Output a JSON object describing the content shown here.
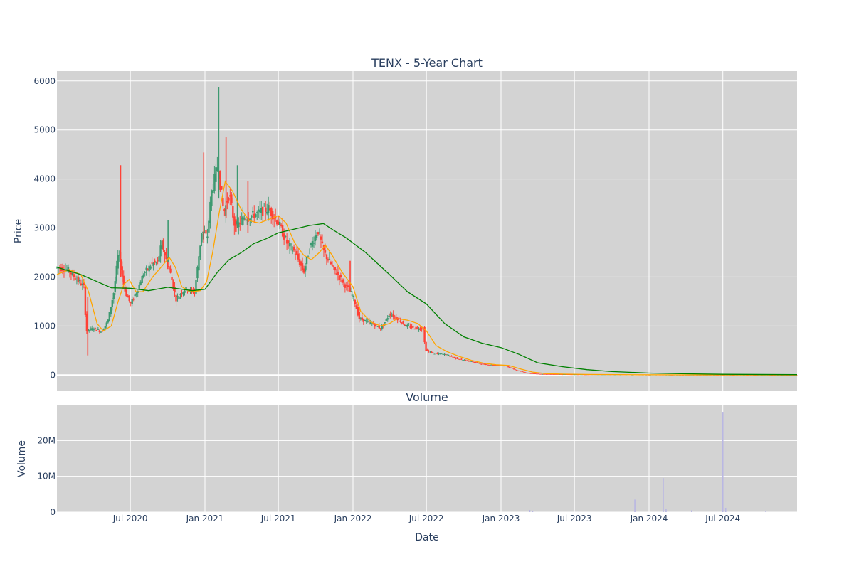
{
  "chart_data": [
    {
      "type": "candlestick",
      "title": "TENX - 5-Year Chart",
      "ylabel": "Price",
      "ylim": [
        -330,
        6200
      ],
      "yticks": [
        "0",
        "1000",
        "2000",
        "3000",
        "4000",
        "5000",
        "6000"
      ],
      "ytick_values": [
        0,
        1000,
        2000,
        3000,
        4000,
        5000,
        6000
      ],
      "xlim": [
        "2020-01-02",
        "2024-12-31"
      ],
      "grid": true,
      "colors": {
        "background": "#d3d3d3",
        "grid": "#ffffff",
        "increasing": "#3d9970",
        "decreasing": "#ff4136",
        "short_ma": "#ffa500",
        "long_ma": "#008000"
      },
      "price_path": [
        [
          "2020-01-02",
          2200
        ],
        [
          "2020-02-01",
          2150
        ],
        [
          "2020-03-01",
          1900
        ],
        [
          "2020-03-12",
          1800
        ],
        [
          "2020-03-18",
          900
        ],
        [
          "2020-04-05",
          950
        ],
        [
          "2020-04-25",
          880
        ],
        [
          "2020-05-10",
          1100
        ],
        [
          "2020-05-25",
          1700
        ],
        [
          "2020-06-05",
          2500
        ],
        [
          "2020-06-10",
          2250
        ],
        [
          "2020-06-20",
          1750
        ],
        [
          "2020-07-05",
          1450
        ],
        [
          "2020-07-20",
          1700
        ],
        [
          "2020-08-05",
          2050
        ],
        [
          "2020-08-25",
          2250
        ],
        [
          "2020-09-10",
          2300
        ],
        [
          "2020-09-20",
          2700
        ],
        [
          "2020-10-01",
          2350
        ],
        [
          "2020-10-12",
          2050
        ],
        [
          "2020-10-25",
          1550
        ],
        [
          "2020-11-15",
          1750
        ],
        [
          "2020-12-10",
          1700
        ],
        [
          "2020-12-28",
          2950
        ],
        [
          "2021-01-10",
          2800
        ],
        [
          "2021-01-20",
          3700
        ],
        [
          "2021-02-05",
          4300
        ],
        [
          "2021-02-20",
          3300
        ],
        [
          "2021-03-05",
          3700
        ],
        [
          "2021-03-20",
          3000
        ],
        [
          "2021-04-10",
          3200
        ],
        [
          "2021-05-15",
          3300
        ],
        [
          "2021-06-10",
          3400
        ],
        [
          "2021-07-05",
          3100
        ],
        [
          "2021-07-25",
          2700
        ],
        [
          "2021-08-15",
          2500
        ],
        [
          "2021-09-05",
          2100
        ],
        [
          "2021-09-20",
          2600
        ],
        [
          "2021-10-10",
          2950
        ],
        [
          "2021-10-25",
          2500
        ],
        [
          "2021-11-15",
          2200
        ],
        [
          "2021-12-10",
          1900
        ],
        [
          "2022-01-05",
          1600
        ],
        [
          "2022-01-20",
          1150
        ],
        [
          "2022-02-20",
          1050
        ],
        [
          "2022-03-15",
          950
        ],
        [
          "2022-04-05",
          1250
        ],
        [
          "2022-04-25",
          1150
        ],
        [
          "2022-05-15",
          1000
        ],
        [
          "2022-06-10",
          950
        ],
        [
          "2022-06-28",
          950
        ],
        [
          "2022-07-01",
          520
        ],
        [
          "2022-07-20",
          440
        ],
        [
          "2022-08-20",
          420
        ],
        [
          "2022-09-20",
          330
        ],
        [
          "2022-10-20",
          280
        ],
        [
          "2022-11-20",
          220
        ],
        [
          "2022-12-20",
          200
        ],
        [
          "2023-01-15",
          190
        ],
        [
          "2023-02-10",
          100
        ],
        [
          "2023-03-10",
          40
        ],
        [
          "2023-04-10",
          20
        ],
        [
          "2023-06-01",
          15
        ],
        [
          "2023-08-01",
          10
        ],
        [
          "2023-10-01",
          8
        ],
        [
          "2024-01-01",
          6
        ],
        [
          "2024-04-01",
          4
        ],
        [
          "2024-07-01",
          3
        ],
        [
          "2024-12-31",
          2
        ]
      ],
      "spikes": [
        {
          "date": "2020-06-07",
          "high": 4280,
          "low": 2000,
          "direction": "down"
        },
        {
          "date": "2020-03-18",
          "high": 1600,
          "low": 400,
          "direction": "down"
        },
        {
          "date": "2020-10-02",
          "high": 3160,
          "low": 2300,
          "direction": "up"
        },
        {
          "date": "2020-12-29",
          "high": 4540,
          "low": 2700,
          "direction": "down"
        },
        {
          "date": "2021-02-04",
          "high": 5880,
          "low": 3600,
          "direction": "up"
        },
        {
          "date": "2021-02-22",
          "high": 4850,
          "low": 3200,
          "direction": "down"
        },
        {
          "date": "2021-03-22",
          "high": 4280,
          "low": 3000,
          "direction": "up"
        },
        {
          "date": "2021-04-17",
          "high": 3950,
          "low": 2900,
          "direction": "down"
        },
        {
          "date": "2021-12-25",
          "high": 2330,
          "low": 1700,
          "direction": "down"
        }
      ],
      "short_ma": [
        [
          "2020-01-02",
          2050
        ],
        [
          "2020-02-01",
          2150
        ],
        [
          "2020-03-01",
          2050
        ],
        [
          "2020-03-20",
          1700
        ],
        [
          "2020-04-10",
          1050
        ],
        [
          "2020-04-25",
          900
        ],
        [
          "2020-05-15",
          1000
        ],
        [
          "2020-06-01",
          1500
        ],
        [
          "2020-06-15",
          1850
        ],
        [
          "2020-06-28",
          1950
        ],
        [
          "2020-07-15",
          1700
        ],
        [
          "2020-08-01",
          1700
        ],
        [
          "2020-08-25",
          2000
        ],
        [
          "2020-09-20",
          2250
        ],
        [
          "2020-10-05",
          2400
        ],
        [
          "2020-10-20",
          2200
        ],
        [
          "2020-11-05",
          1800
        ],
        [
          "2020-11-25",
          1700
        ],
        [
          "2020-12-20",
          1720
        ],
        [
          "2021-01-05",
          1900
        ],
        [
          "2021-01-20",
          2500
        ],
        [
          "2021-02-05",
          3300
        ],
        [
          "2021-02-20",
          3950
        ],
        [
          "2021-03-10",
          3750
        ],
        [
          "2021-03-30",
          3400
        ],
        [
          "2021-04-20",
          3150
        ],
        [
          "2021-05-15",
          3100
        ],
        [
          "2021-06-15",
          3200
        ],
        [
          "2021-07-01",
          3250
        ],
        [
          "2021-07-20",
          3100
        ],
        [
          "2021-08-10",
          2700
        ],
        [
          "2021-09-01",
          2450
        ],
        [
          "2021-09-20",
          2350
        ],
        [
          "2021-10-10",
          2500
        ],
        [
          "2021-10-25",
          2650
        ],
        [
          "2021-11-10",
          2450
        ],
        [
          "2021-12-05",
          2100
        ],
        [
          "2022-01-01",
          1800
        ],
        [
          "2022-01-20",
          1300
        ],
        [
          "2022-02-15",
          1080
        ],
        [
          "2022-03-10",
          1000
        ],
        [
          "2022-04-01",
          1050
        ],
        [
          "2022-04-20",
          1150
        ],
        [
          "2022-05-15",
          1120
        ],
        [
          "2022-06-10",
          1050
        ],
        [
          "2022-07-01",
          900
        ],
        [
          "2022-07-25",
          600
        ],
        [
          "2022-08-20",
          480
        ],
        [
          "2022-09-20",
          380
        ],
        [
          "2022-10-20",
          300
        ],
        [
          "2022-11-20",
          240
        ],
        [
          "2022-12-20",
          210
        ],
        [
          "2023-01-20",
          195
        ],
        [
          "2023-02-20",
          120
        ],
        [
          "2023-03-20",
          60
        ],
        [
          "2023-04-20",
          30
        ],
        [
          "2023-06-01",
          20
        ],
        [
          "2023-08-01",
          12
        ],
        [
          "2023-12-01",
          7
        ],
        [
          "2024-06-01",
          4
        ],
        [
          "2024-12-31",
          2
        ]
      ],
      "long_ma": [
        [
          "2020-01-02",
          2200
        ],
        [
          "2020-03-01",
          2050
        ],
        [
          "2020-05-15",
          1780
        ],
        [
          "2020-07-01",
          1770
        ],
        [
          "2020-08-15",
          1720
        ],
        [
          "2020-10-01",
          1790
        ],
        [
          "2020-12-01",
          1720
        ],
        [
          "2021-01-01",
          1750
        ],
        [
          "2021-02-01",
          2100
        ],
        [
          "2021-03-01",
          2350
        ],
        [
          "2021-04-01",
          2500
        ],
        [
          "2021-05-01",
          2680
        ],
        [
          "2021-06-01",
          2780
        ],
        [
          "2021-07-01",
          2900
        ],
        [
          "2021-08-01",
          2960
        ],
        [
          "2021-09-15",
          3050
        ],
        [
          "2021-10-20",
          3090
        ],
        [
          "2021-11-15",
          2950
        ],
        [
          "2021-12-15",
          2800
        ],
        [
          "2022-02-01",
          2500
        ],
        [
          "2022-04-01",
          2050
        ],
        [
          "2022-05-15",
          1700
        ],
        [
          "2022-07-01",
          1450
        ],
        [
          "2022-08-15",
          1050
        ],
        [
          "2022-10-01",
          780
        ],
        [
          "2022-11-15",
          650
        ],
        [
          "2023-01-01",
          560
        ],
        [
          "2023-02-15",
          420
        ],
        [
          "2023-04-01",
          250
        ],
        [
          "2023-06-01",
          170
        ],
        [
          "2023-08-01",
          110
        ],
        [
          "2023-10-01",
          70
        ],
        [
          "2024-01-01",
          40
        ],
        [
          "2024-04-01",
          25
        ],
        [
          "2024-07-01",
          15
        ],
        [
          "2024-12-31",
          8
        ]
      ]
    },
    {
      "type": "bar",
      "title": "Volume",
      "xlabel": "Date",
      "ylabel": "Volume",
      "ylim": [
        0,
        29800000
      ],
      "yticks": [
        "0",
        "10M",
        "20M"
      ],
      "ytick_values": [
        0,
        10000000,
        20000000
      ],
      "xticks": [
        "Jul 2020",
        "Jan 2021",
        "Jul 2021",
        "Jan 2022",
        "Jul 2022",
        "Jan 2023",
        "Jul 2023",
        "Jan 2024",
        "Jul 2024"
      ],
      "xtick_values": [
        "2020-07-01",
        "2021-01-01",
        "2021-07-01",
        "2022-01-01",
        "2022-07-01",
        "2023-01-01",
        "2023-07-01",
        "2024-01-01",
        "2024-07-01"
      ],
      "bar_color": "#b9b7e3",
      "spikes": [
        [
          "2023-03-13",
          600000
        ],
        [
          "2023-03-20",
          400000
        ],
        [
          "2023-11-27",
          3500000
        ],
        [
          "2024-02-05",
          9500000
        ],
        [
          "2024-02-12",
          800000
        ],
        [
          "2024-04-15",
          500000
        ],
        [
          "2024-07-01",
          28000000
        ],
        [
          "2024-07-08",
          1200000
        ],
        [
          "2024-10-15",
          400000
        ]
      ]
    }
  ]
}
